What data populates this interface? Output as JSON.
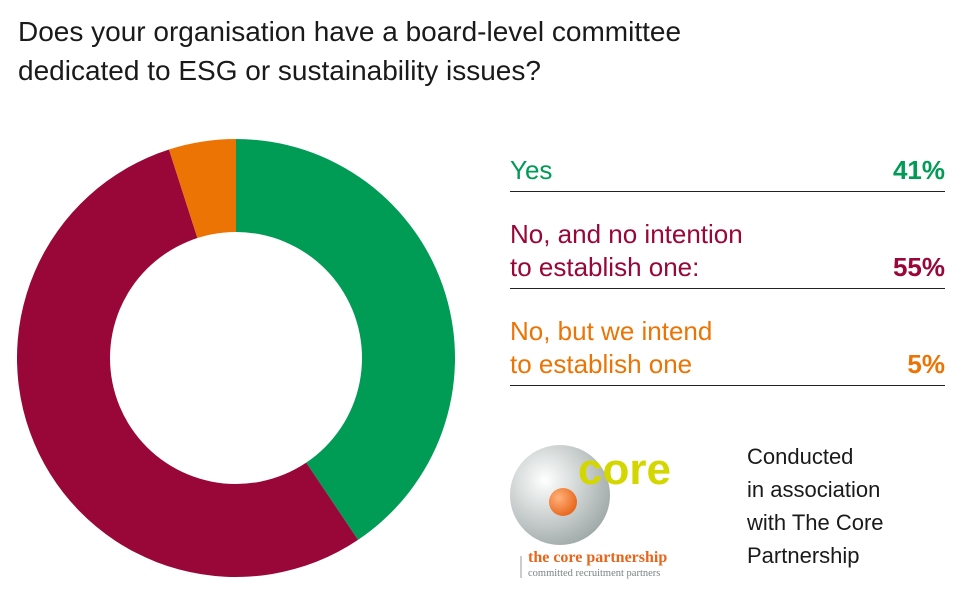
{
  "title": "Does your organisation have a board-level committee\ndedicated to ESG or sustainability issues?",
  "chart_data": {
    "type": "pie",
    "subtype": "donut",
    "title": "Does your organisation have a board-level committee dedicated to ESG or sustainability issues?",
    "categories": [
      "Yes",
      "No, and no intention to establish one:",
      "No, but we intend to establish one"
    ],
    "values": [
      41,
      55,
      5
    ],
    "unit": "%",
    "colors": [
      "#009B55",
      "#990738",
      "#EC7405"
    ],
    "legend_position": "right",
    "start_angle": "12 o'clock, clockwise"
  },
  "legend": [
    {
      "label": "Yes",
      "value": "41%",
      "color": "#009B55"
    },
    {
      "label": "No, and no intention\nto establish one:",
      "value": "55%",
      "color": "#990738"
    },
    {
      "label": "No, but we intend\nto establish one",
      "value": "5%",
      "color": "#EC7405"
    }
  ],
  "logo": {
    "wordmark": "core",
    "name": "the core partnership",
    "tagline": "committed recruitment partners"
  },
  "credit": "Conducted\nin association\nwith The Core\nPartnership"
}
